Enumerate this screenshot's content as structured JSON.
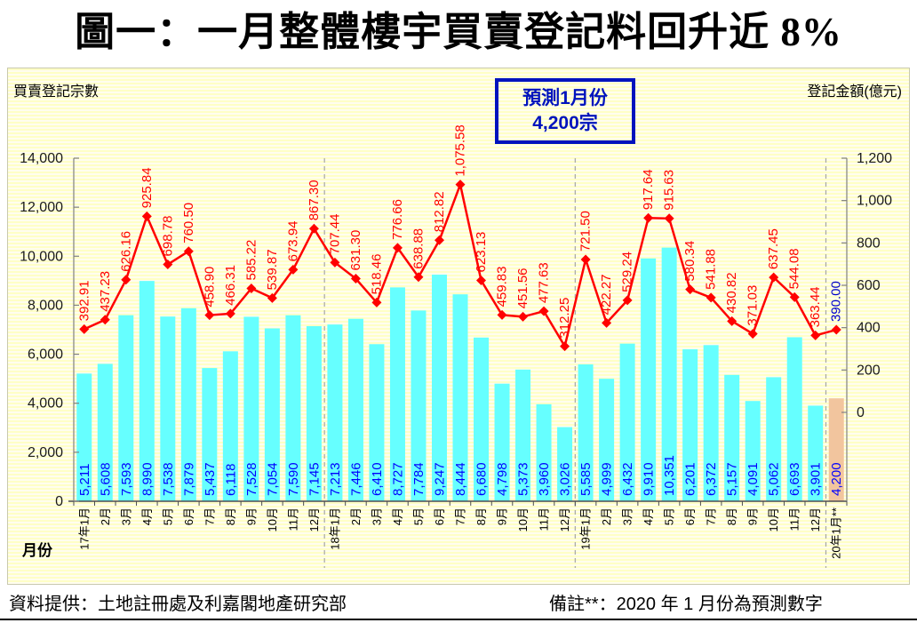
{
  "title": "圖一：一月整體樓宇買賣登記料回升近 8%",
  "chart": {
    "left_axis_title": "買賣登記宗數",
    "right_axis_title": "登記金額(億元)",
    "x_axis_title": "月份",
    "forecast_box": {
      "line1": "預測1月份",
      "line2": "4,200宗"
    }
  },
  "chart_data": {
    "type": "bar",
    "title": "圖一：一月整體樓宇買賣登記料回升近 8%",
    "categories": [
      "17年1月",
      "2月",
      "3月",
      "4月",
      "5月",
      "6月",
      "7月",
      "8月",
      "9月",
      "10月",
      "11月",
      "12月",
      "18年1月",
      "2月",
      "3月",
      "4月",
      "5月",
      "6月",
      "7月",
      "8月",
      "9月",
      "10月",
      "11月",
      "12月",
      "19年1月",
      "2月",
      "3月",
      "4月",
      "5月",
      "6月",
      "7月",
      "8月",
      "9月",
      "10月",
      "11月",
      "12月",
      "20年1月**"
    ],
    "series": [
      {
        "name": "買賣登記宗數",
        "chart_type": "bar",
        "axis": "left",
        "values": [
          5211,
          5608,
          7593,
          8990,
          7538,
          7879,
          5437,
          6118,
          7528,
          7054,
          7590,
          7145,
          7213,
          7446,
          6410,
          8727,
          7784,
          9247,
          8444,
          6680,
          4798,
          5373,
          3960,
          3026,
          5585,
          4999,
          6432,
          9910,
          10351,
          6201,
          6372,
          5157,
          4091,
          5062,
          6693,
          3901,
          4200
        ]
      },
      {
        "name": "登記金額(億元)",
        "chart_type": "line",
        "axis": "right",
        "values": [
          392.91,
          437.23,
          626.16,
          925.84,
          698.78,
          760.5,
          458.9,
          466.31,
          585.22,
          539.87,
          673.94,
          867.3,
          707.44,
          631.3,
          518.46,
          776.66,
          638.88,
          812.82,
          1075.58,
          623.13,
          459.83,
          451.56,
          477.63,
          312.25,
          721.5,
          422.27,
          529.24,
          917.64,
          915.63,
          580.34,
          541.88,
          430.82,
          371.03,
          637.45,
          544.08,
          363.44,
          390.0
        ]
      }
    ],
    "left_axis": {
      "ticks": [
        0,
        2000,
        4000,
        6000,
        8000,
        10000,
        12000,
        14000
      ],
      "range": [
        0,
        14000
      ]
    },
    "right_axis": {
      "ticks": [
        0,
        200,
        400,
        600,
        800,
        1000,
        1200
      ],
      "range": [
        0,
        1200
      ],
      "plot_range_hint": [
        -420,
        1200
      ]
    },
    "year_separator_indices": [
      11,
      23,
      35
    ],
    "forecast_index": 36,
    "annotations": [
      "預測1月份 4,200宗"
    ],
    "grid": "off",
    "legend": "none"
  },
  "footer": {
    "source": "資料提供：土地註冊處及利嘉閣地產研究部",
    "note": "備註**：2020 年 1 月份為預測數字"
  },
  "colors": {
    "bar_fill": "#66ffff",
    "forecast_bar_fill": "#f2c59e",
    "line_color": "#ff0000",
    "bar_label_color": "#0000ff",
    "line_label_color": "#ff0000",
    "forecast_label_color": "#0000cc",
    "forecast_box_color": "#0013bd",
    "axis_color": "#808080",
    "bottom_axis_color": "#4d4d4d",
    "tick_label_color": "#1a1a1a",
    "x_label_color": "#000000",
    "separator_color": "#a6a6a6",
    "plot_bg": "#ffffc6"
  }
}
